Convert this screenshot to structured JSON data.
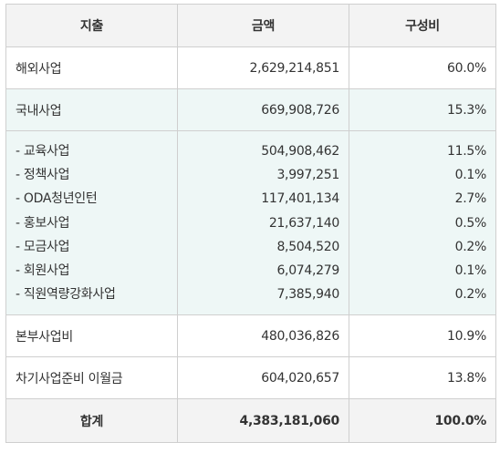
{
  "headers": [
    "지출",
    "금액",
    "구성비"
  ],
  "rows": [
    {
      "label": "해외사업",
      "amount": "2,629,214,851",
      "ratio": "60.0%"
    },
    {
      "label": "국내사업",
      "amount": "669,908,726",
      "ratio": "15.3%"
    }
  ],
  "sub_items": [
    {
      "label": "- 교육사업",
      "amount": "504,908,462",
      "ratio": "11.5%"
    },
    {
      "label": "- 정책사업",
      "amount": "3,997,251",
      "ratio": "0.1%"
    },
    {
      "label": "- ODA청년인턴",
      "amount": "117,401,134",
      "ratio": "2.7%"
    },
    {
      "label": "- 홍보사업",
      "amount": "21,637,140",
      "ratio": "0.5%"
    },
    {
      "label": "- 모금사업",
      "amount": "8,504,520",
      "ratio": "0.2%"
    },
    {
      "label": "- 회원사업",
      "amount": "6,074,279",
      "ratio": "0.1%"
    },
    {
      "label": "- 직원역량강화사업",
      "amount": "7,385,940",
      "ratio": "0.2%"
    }
  ],
  "rows_after": [
    {
      "label": "본부사업비",
      "amount": "480,036,826",
      "ratio": "10.9%"
    },
    {
      "label": "차기사업준비 이월금",
      "amount": "604,020,657",
      "ratio": "13.8%"
    }
  ],
  "total": {
    "label": "합계",
    "amount": "4,383,181,060",
    "ratio": "100.0%"
  }
}
